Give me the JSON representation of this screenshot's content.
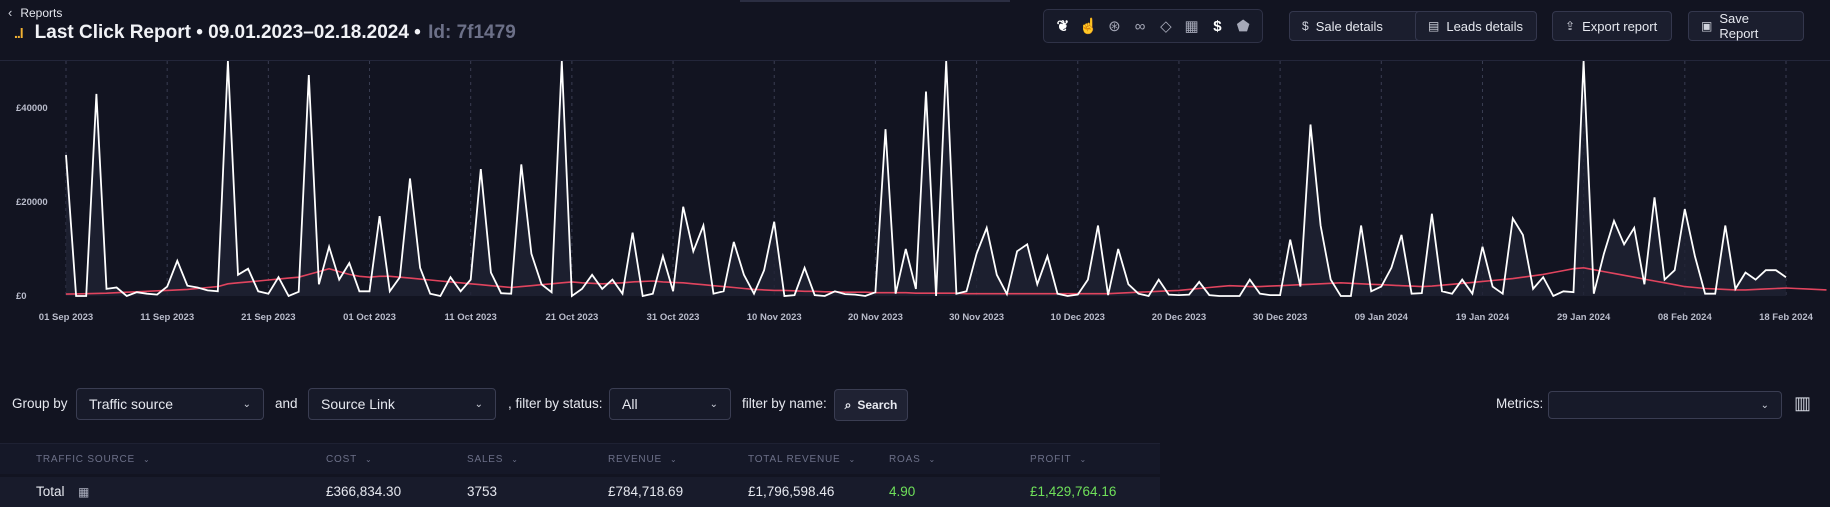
{
  "header": {
    "breadcrumb": "Reports",
    "logo": "..l",
    "title": "Last Click Report • 09.01.2023–02.18.2024 •",
    "id_label": "Id: 7f1479",
    "icons": [
      "leaf-icon",
      "cursor-click-icon",
      "coin-dollar-icon",
      "link-icon",
      "tag-icon",
      "calendar-icon",
      "dollar-icon",
      "discount-tag-icon"
    ],
    "buttons": {
      "sale_details": "Sale details",
      "leads_details": "Leads details",
      "export_report": "Export report",
      "save_report": "Save Report"
    }
  },
  "chart_data": {
    "type": "line",
    "ylim": [
      0,
      50000
    ],
    "y_ticks": [
      "£0",
      "£20000",
      "£40000"
    ],
    "x_ticks": [
      "01 Sep 2023",
      "11 Sep 2023",
      "21 Sep 2023",
      "01 Oct 2023",
      "11 Oct 2023",
      "21 Oct 2023",
      "31 Oct 2023",
      "10 Nov 2023",
      "20 Nov 2023",
      "30 Nov 2023",
      "10 Dec 2023",
      "20 Dec 2023",
      "30 Dec 2023",
      "09 Jan 2024",
      "19 Jan 2024",
      "29 Jan 2024",
      "08 Feb 2024",
      "18 Feb 2024"
    ],
    "colors": {
      "revenue": "#ffffff",
      "cost": "#e0445e"
    },
    "series": [
      {
        "values": [
          30000,
          0,
          0,
          43000,
          1500,
          1800,
          0,
          800,
          500,
          300,
          2000,
          7500,
          2200,
          1800,
          1200,
          1000,
          50000,
          4500,
          5800,
          1000,
          500,
          4000,
          0,
          900,
          47000,
          2500,
          10500,
          3500,
          7000,
          1000,
          1000,
          17000,
          1000,
          4000,
          25000,
          6000,
          500,
          0,
          4000,
          1000,
          3500,
          27000,
          5000,
          600,
          500,
          28000,
          9000,
          2500,
          800,
          50000,
          0,
          1500,
          4500,
          1500,
          3500,
          500,
          13500,
          0,
          500,
          8500,
          1000,
          19000,
          9500,
          15000,
          500,
          1000,
          11500,
          4500,
          500,
          5500,
          15800,
          0,
          200,
          6000,
          200,
          0,
          1000,
          400,
          300,
          0,
          800,
          35500,
          500,
          10000,
          1500,
          43500,
          0,
          50000,
          500,
          1000,
          9000,
          14500,
          4500,
          400,
          9500,
          11000,
          2500,
          8500,
          500,
          0,
          300,
          3500,
          15000,
          200,
          10000,
          2500,
          500,
          0,
          3500,
          300,
          200,
          300,
          3000,
          200,
          0,
          0,
          0,
          3500,
          500,
          200,
          200,
          12000,
          2000,
          36500,
          15000,
          3500,
          0,
          0,
          15000,
          1000,
          2000,
          6000,
          13000,
          500,
          600,
          17500,
          1000,
          500,
          3500,
          500,
          10500,
          2000,
          500,
          16500,
          13000,
          1500,
          4000,
          0,
          1000,
          800,
          50000,
          500,
          9000,
          16000,
          11000,
          14500,
          2500,
          21000,
          3500,
          5500,
          18500,
          8500,
          500,
          500,
          15000,
          1500,
          5000,
          3500,
          5500,
          5500,
          4000
        ]
      },
      {
        "values": [
          400,
          450,
          500,
          550,
          600,
          700,
          800,
          900,
          1000,
          1100,
          1200,
          1300,
          1400,
          1600,
          1800,
          2000,
          2600,
          2800,
          3000,
          3200,
          3400,
          3600,
          3800,
          4000,
          4600,
          5200,
          5800,
          5200,
          4600,
          4200,
          4000,
          4200,
          4200,
          4000,
          3800,
          3600,
          3400,
          3200,
          3000,
          2800,
          2600,
          2400,
          2200,
          2000,
          1800,
          2000,
          2200,
          2400,
          2600,
          2800,
          3000,
          2800,
          2700,
          2600,
          2700,
          2800,
          3000,
          3100,
          3200,
          3000,
          2900,
          2800,
          2600,
          2400,
          2200,
          2000,
          1800,
          1600,
          1400,
          1300,
          1200,
          1200,
          1100,
          1000,
          1000,
          900,
          900,
          800,
          800,
          800,
          700,
          700,
          700,
          700,
          600,
          600,
          600,
          600,
          600,
          500,
          500,
          500,
          500,
          500,
          500,
          500,
          500,
          500,
          500,
          500,
          500,
          500,
          500,
          500,
          600,
          700,
          800,
          900,
          1000,
          1100,
          1200,
          1400,
          1600,
          1800,
          2000,
          2200,
          2100,
          2000,
          2000,
          2100,
          2200,
          2300,
          2400,
          2500,
          2600,
          2700,
          2800,
          2700,
          2600,
          2500,
          2400,
          2300,
          2200,
          2100,
          2000,
          2100,
          2300,
          2500,
          2700,
          2900,
          3100,
          3300,
          3500,
          3700,
          4000,
          4300,
          4600,
          5000,
          5400,
          5800,
          6000,
          5600,
          5200,
          4800,
          4400,
          4000,
          3600,
          3200,
          2800,
          2400,
          2000,
          1800,
          1600,
          1500,
          1400,
          1300,
          1300,
          1400,
          1500,
          1600,
          1700,
          1600,
          1500,
          1400,
          1300
        ]
      }
    ]
  },
  "toolbar": {
    "group_by_label": "Group by",
    "group_by_value": "Traffic source",
    "and_label": "and",
    "second_group_value": "Source Link",
    "status_label": ", filter by status:",
    "status_value": "All",
    "name_label": "filter by name:",
    "search_label": "Search",
    "metrics_label": "Metrics:",
    "metrics_value": ""
  },
  "table": {
    "columns": [
      "TRAFFIC SOURCE",
      "COST",
      "SALES",
      "REVENUE",
      "TOTAL REVENUE",
      "ROAS",
      "PROFIT"
    ],
    "total_row": {
      "label": "Total",
      "cost": "£366,834.30",
      "sales": "3753",
      "revenue": "£784,718.69",
      "total_revenue": "£1,796,598.46",
      "roas": "4.90",
      "profit": "£1,429,764.16"
    },
    "colors": {
      "positive": "#6fe05a"
    }
  }
}
